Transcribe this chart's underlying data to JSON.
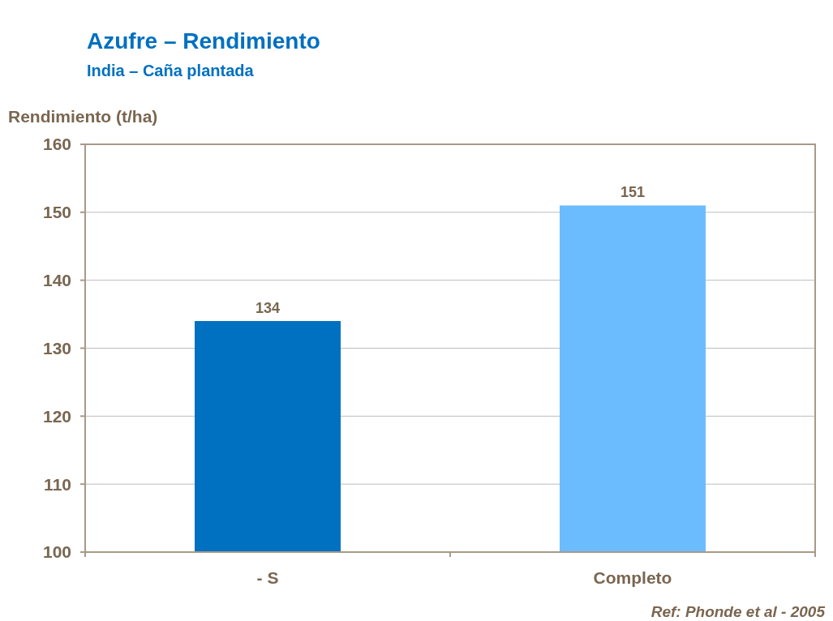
{
  "chart_data": {
    "type": "bar",
    "title": "Azufre – Rendimiento",
    "subtitle": "India – Caña plantada",
    "ylabel": "Rendimiento (t/ha)",
    "categories": [
      "- S",
      "Completo"
    ],
    "values": [
      134,
      151
    ],
    "colors": [
      "#0070c0",
      "#6bbcff"
    ],
    "ylim": [
      100,
      160
    ],
    "yticks": [
      100,
      110,
      120,
      130,
      140,
      150,
      160
    ],
    "grid": "y",
    "data_labels": true,
    "annotations": [
      "Ref: Phonde et al - 2005"
    ]
  }
}
